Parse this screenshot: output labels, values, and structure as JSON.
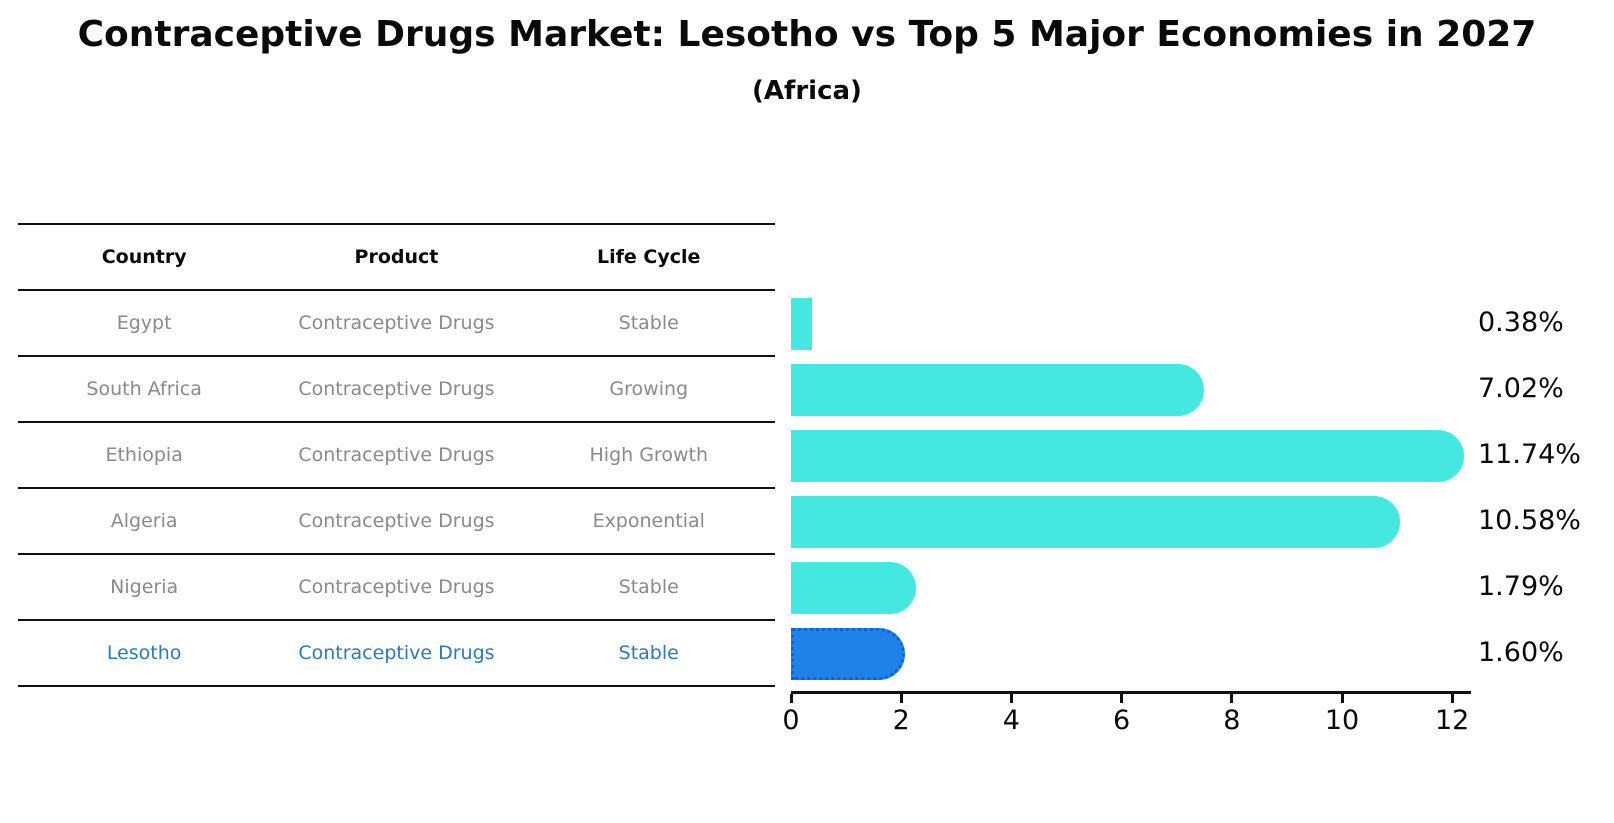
{
  "title": "Contraceptive Drugs Market: Lesotho vs Top 5 Major Economies in 2027",
  "subtitle": "(Africa)",
  "table": {
    "headers": [
      "Country",
      "Product",
      "Life Cycle"
    ],
    "rows": [
      {
        "country": "Egypt",
        "product": "Contraceptive Drugs",
        "life_cycle": "Stable",
        "highlight": false
      },
      {
        "country": "South Africa",
        "product": "Contraceptive Drugs",
        "life_cycle": "Growing",
        "highlight": false
      },
      {
        "country": "Ethiopia",
        "product": "Contraceptive Drugs",
        "life_cycle": "High Growth",
        "highlight": false
      },
      {
        "country": "Algeria",
        "product": "Contraceptive Drugs",
        "life_cycle": "Exponential",
        "highlight": false
      },
      {
        "country": "Nigeria",
        "product": "Contraceptive Drugs",
        "life_cycle": "Stable",
        "highlight": false
      },
      {
        "country": "Lesotho",
        "product": "Contraceptive Drugs",
        "life_cycle": "Stable",
        "highlight": true
      }
    ]
  },
  "chart_data": {
    "type": "bar",
    "orientation": "horizontal",
    "title": "Contraceptive Drugs Market: Lesotho vs Top 5 Major Economies in 2027 (Africa)",
    "categories": [
      "Egypt",
      "South Africa",
      "Ethiopia",
      "Algeria",
      "Nigeria",
      "Lesotho"
    ],
    "values": [
      0.38,
      7.02,
      11.74,
      10.58,
      1.79,
      1.6
    ],
    "value_labels": [
      "0.38%",
      "7.02%",
      "11.74%",
      "10.58%",
      "1.79%",
      "1.60%"
    ],
    "x_ticks": [
      0,
      2,
      4,
      6,
      8,
      10,
      12
    ],
    "xlim": [
      0,
      12.4
    ],
    "grid": false,
    "legend": false,
    "bar_color": "#45e8e0",
    "highlight_index": 5,
    "highlight_color": "#1e82e8",
    "highlight_border_color": "#0f62d8",
    "row_text_color": "#8a8a8a",
    "highlight_text_color": "#2e7ab8"
  }
}
